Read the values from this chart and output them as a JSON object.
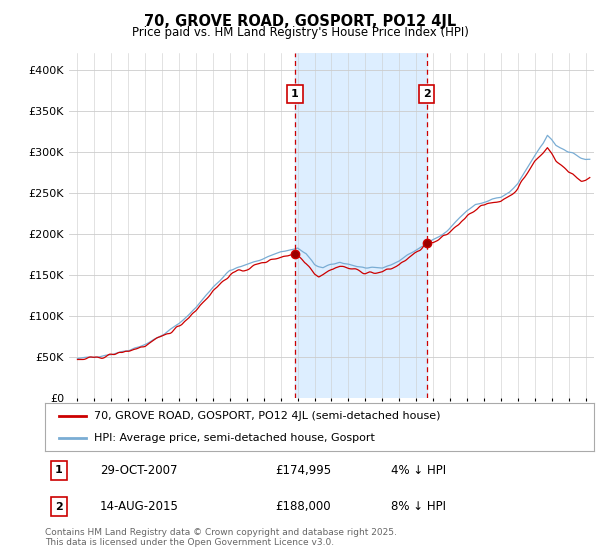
{
  "title": "70, GROVE ROAD, GOSPORT, PO12 4JL",
  "subtitle": "Price paid vs. HM Land Registry's House Price Index (HPI)",
  "legend_label_red": "70, GROVE ROAD, GOSPORT, PO12 4JL (semi-detached house)",
  "legend_label_blue": "HPI: Average price, semi-detached house, Gosport",
  "footnote": "Contains HM Land Registry data © Crown copyright and database right 2025.\nThis data is licensed under the Open Government Licence v3.0.",
  "marker1_date": "29-OCT-2007",
  "marker1_price": "£174,995",
  "marker1_hpi": "4% ↓ HPI",
  "marker1_x": 2007.83,
  "marker1_y": 174995,
  "marker2_date": "14-AUG-2015",
  "marker2_price": "£188,000",
  "marker2_hpi": "8% ↓ HPI",
  "marker2_x": 2015.62,
  "marker2_y": 188000,
  "ylim": [
    0,
    420000
  ],
  "xlim": [
    1994.5,
    2025.5
  ],
  "yticks": [
    0,
    50000,
    100000,
    150000,
    200000,
    250000,
    300000,
    350000,
    400000
  ],
  "ytick_labels": [
    "£0",
    "£50K",
    "£100K",
    "£150K",
    "£200K",
    "£250K",
    "£300K",
    "£350K",
    "£400K"
  ],
  "color_red": "#cc0000",
  "color_blue": "#7aadd4",
  "color_shaded": "#ddeeff",
  "background_color": "#ffffff",
  "grid_color": "#cccccc"
}
